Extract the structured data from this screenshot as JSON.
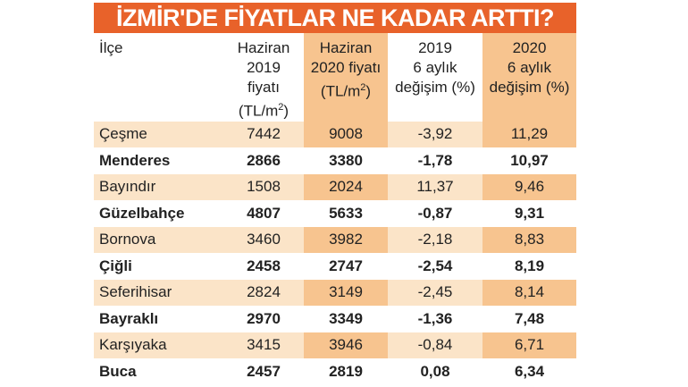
{
  "title": "İZMİR'DE FİYATLAR NE KADAR ARTTI?",
  "headers": [
    {
      "lines": [
        "İlçe"
      ]
    },
    {
      "lines": [
        "Haziran",
        "2019 fiyatı",
        "(TL/m",
        "2",
        ")"
      ]
    },
    {
      "lines": [
        "Haziran",
        "2020 fiyatı",
        "(TL/m",
        "2",
        ")"
      ]
    },
    {
      "lines": [
        "2019",
        "6 aylık",
        "değişim (%)"
      ]
    },
    {
      "lines": [
        "2020",
        "6 aylık",
        "değişim (%)"
      ]
    }
  ],
  "rows": [
    [
      "Çeşme",
      "7442",
      "9008",
      "-3,92",
      "11,29"
    ],
    [
      "Menderes",
      "2866",
      "3380",
      "-1,78",
      "10,97"
    ],
    [
      "Bayındır",
      "1508",
      "2024",
      "11,37",
      "9,46"
    ],
    [
      "Güzelbahçe",
      "4807",
      "5633",
      "-0,87",
      "9,31"
    ],
    [
      "Bornova",
      "3460",
      "3982",
      "-2,18",
      "8,83"
    ],
    [
      "Çiğli",
      "2458",
      "2747",
      "-2,54",
      "8,19"
    ],
    [
      "Seferihisar",
      "2824",
      "3149",
      "-2,45",
      "8,14"
    ],
    [
      "Bayraklı",
      "2970",
      "3349",
      "-1,36",
      "7,48"
    ],
    [
      "Karşıyaka",
      "3415",
      "3946",
      "-0,84",
      "6,71"
    ],
    [
      "Buca",
      "2457",
      "2819",
      "0,08",
      "6,34"
    ]
  ]
}
